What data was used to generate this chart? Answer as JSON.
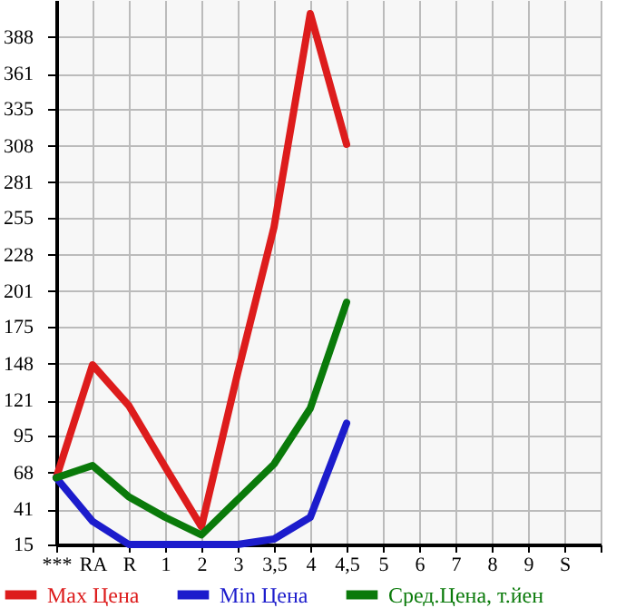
{
  "chart_data": {
    "type": "line",
    "categories": [
      "***",
      "RA",
      "R",
      "1",
      "2",
      "3",
      "3,5",
      "4",
      "4,5",
      "5",
      "6",
      "7",
      "8",
      "9",
      "S",
      null
    ],
    "series": [
      {
        "name": "Max Цена",
        "color": "#dd1c1c",
        "values": [
          64,
          147,
          117,
          72,
          28,
          141,
          248,
          405,
          309,
          null,
          null,
          null,
          null,
          null,
          null,
          null
        ]
      },
      {
        "name": "Min Цена",
        "color": "#1c1ccc",
        "values": [
          64,
          32,
          15,
          15,
          15,
          15,
          19,
          35,
          104,
          null,
          null,
          null,
          null,
          null,
          null,
          null
        ]
      },
      {
        "name": "Сред.Цена, т.йен",
        "color": "#0a7a0a",
        "values": [
          64,
          73,
          50,
          35,
          22,
          48,
          74,
          115,
          193,
          null,
          null,
          null,
          null,
          null,
          null,
          null
        ]
      }
    ],
    "ylim": [
      15,
      415
    ],
    "yticks": [
      15,
      41,
      68,
      95,
      121,
      148,
      175,
      201,
      228,
      255,
      281,
      308,
      335,
      361,
      388
    ],
    "grid": true,
    "legend": "bottom",
    "marker": "none",
    "line_style": "solid"
  }
}
